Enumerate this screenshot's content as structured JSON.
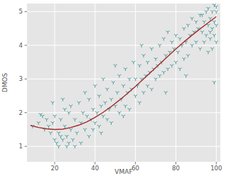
{
  "chart_data": {
    "type": "scatter",
    "x_label": "VMAF",
    "y_label": "DMOS",
    "xlim": [
      6.3,
      102
    ],
    "ylim": [
      0.54,
      5.24
    ],
    "xticks": [
      20,
      40,
      60,
      80,
      100
    ],
    "yticks": [
      1,
      2,
      3,
      4,
      5
    ],
    "grid": true,
    "series": [
      {
        "type": "scatter",
        "color": "#2e8b8b",
        "marker": "tri_down",
        "x": [
          9,
          12,
          14,
          15,
          16,
          17,
          18,
          19,
          20,
          20,
          13,
          19,
          21,
          22,
          22,
          23,
          24,
          24,
          25,
          26,
          26,
          27,
          27,
          28,
          28,
          29,
          30,
          30,
          25,
          23,
          31,
          32,
          33,
          33,
          34,
          35,
          35,
          36,
          37,
          37,
          38,
          39,
          39,
          40,
          40,
          41,
          42,
          42,
          43,
          44,
          44,
          45,
          46,
          46,
          47,
          48,
          48,
          49,
          50,
          50,
          43,
          51,
          52,
          52,
          53,
          54,
          55,
          55,
          56,
          57,
          57,
          58,
          59,
          60,
          60,
          54,
          61,
          62,
          62,
          63,
          64,
          64,
          65,
          66,
          66,
          67,
          68,
          68,
          69,
          70,
          70,
          63,
          71,
          72,
          72,
          73,
          74,
          74,
          75,
          76,
          76,
          77,
          78,
          78,
          79,
          80,
          80,
          75,
          81,
          82,
          82,
          83,
          84,
          84,
          85,
          86,
          86,
          87,
          88,
          88,
          89,
          90,
          90,
          85,
          91,
          92,
          92,
          93,
          94,
          94,
          95,
          95,
          96,
          96,
          97,
          97,
          98,
          98,
          98,
          99,
          99,
          99,
          100,
          100,
          100,
          97,
          96,
          99,
          100,
          93
        ],
        "values": [
          1.6,
          1.7,
          1.9,
          1.5,
          1.8,
          1.6,
          1.4,
          1.7,
          1.2,
          1.9,
          1.95,
          2.3,
          1.1,
          1.0,
          1.4,
          1.8,
          1.2,
          2.4,
          1.6,
          1.0,
          1.3,
          2.0,
          1.1,
          1.5,
          2.2,
          1.2,
          1.8,
          1.0,
          2.1,
          1.3,
          1.4,
          2.3,
          1.7,
          1.1,
          2.0,
          1.5,
          2.6,
          1.9,
          1.3,
          2.4,
          1.8,
          2.1,
          1.5,
          2.8,
          1.7,
          2.0,
          1.6,
          2.5,
          2.2,
          1.9,
          3.0,
          2.3,
          1.8,
          2.7,
          2.1,
          2.4,
          1.7,
          2.9,
          2.2,
          3.4,
          1.4,
          2.6,
          2.0,
          3.1,
          2.4,
          2.8,
          2.2,
          3.3,
          2.6,
          3.0,
          2.1,
          2.7,
          3.5,
          2.5,
          3.0,
          1.9,
          2.8,
          3.4,
          2.3,
          3.0,
          2.6,
          3.7,
          3.1,
          2.8,
          3.5,
          3.2,
          2.7,
          3.9,
          3.3,
          3.0,
          3.6,
          4.0,
          3.4,
          3.1,
          4.0,
          3.5,
          3.2,
          4.2,
          3.7,
          3.3,
          4.4,
          3.8,
          3.4,
          4.1,
          3.9,
          3.5,
          4.3,
          2.6,
          3.8,
          4.2,
          3.3,
          4.0,
          4.5,
          3.6,
          4.1,
          4.6,
          3.7,
          4.3,
          4.0,
          4.8,
          4.4,
          4.1,
          4.7,
          3.1,
          4.5,
          4.9,
          3.9,
          4.4,
          4.7,
          4.1,
          5.0,
          4.3,
          4.6,
          5.1,
          4.2,
          4.8,
          4.5,
          5.0,
          3.9,
          4.7,
          5.2,
          4.3,
          4.6,
          5.0,
          4.1,
          4.4,
          3.8,
          2.9,
          5.15,
          4.9
        ]
      },
      {
        "type": "line",
        "color": "#a52a2a",
        "x": [
          8,
          12,
          16,
          20,
          24,
          28,
          32,
          36,
          40,
          44,
          48,
          52,
          56,
          60,
          64,
          68,
          72,
          76,
          80,
          84,
          88,
          92,
          96,
          100
        ],
        "values": [
          1.62,
          1.56,
          1.52,
          1.5,
          1.51,
          1.56,
          1.63,
          1.73,
          1.86,
          2.01,
          2.18,
          2.37,
          2.57,
          2.78,
          3.0,
          3.22,
          3.45,
          3.67,
          3.89,
          4.1,
          4.3,
          4.49,
          4.67,
          4.85
        ]
      }
    ]
  }
}
